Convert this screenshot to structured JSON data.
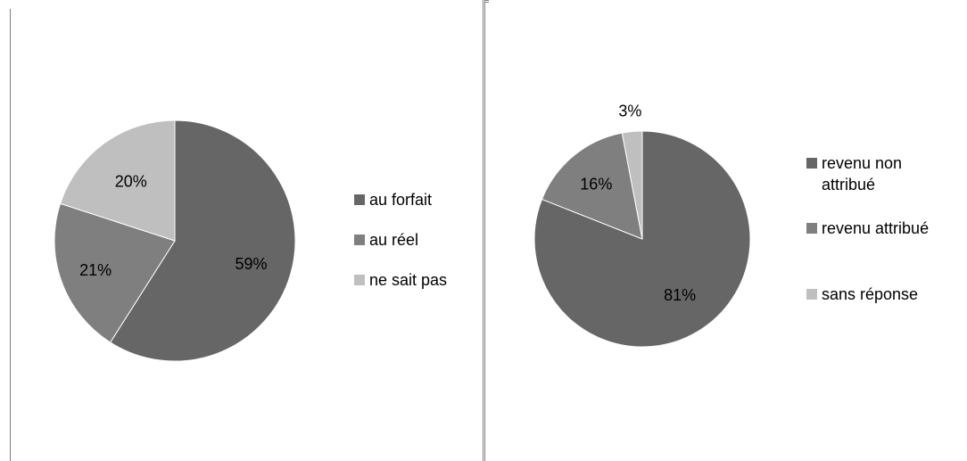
{
  "chart_data": [
    {
      "type": "pie",
      "slices": [
        {
          "label": "au forfait",
          "value": 59,
          "display": "59%",
          "color": "#666666"
        },
        {
          "label": "au réel",
          "value": 21,
          "display": "21%",
          "color": "#7f7f7f"
        },
        {
          "label": "ne sait pas",
          "value": 20,
          "display": "20%",
          "color": "#bfbfbf"
        }
      ],
      "legend_position": "right"
    },
    {
      "type": "pie",
      "slices": [
        {
          "label": "revenu non attribué",
          "value": 81,
          "display": "81%",
          "color": "#666666"
        },
        {
          "label": "revenu attribué",
          "value": 16,
          "display": "16%",
          "color": "#7f7f7f"
        },
        {
          "label": "sans réponse",
          "value": 3,
          "display": "3%",
          "color": "#bfbfbf"
        }
      ],
      "legend_position": "right"
    }
  ]
}
